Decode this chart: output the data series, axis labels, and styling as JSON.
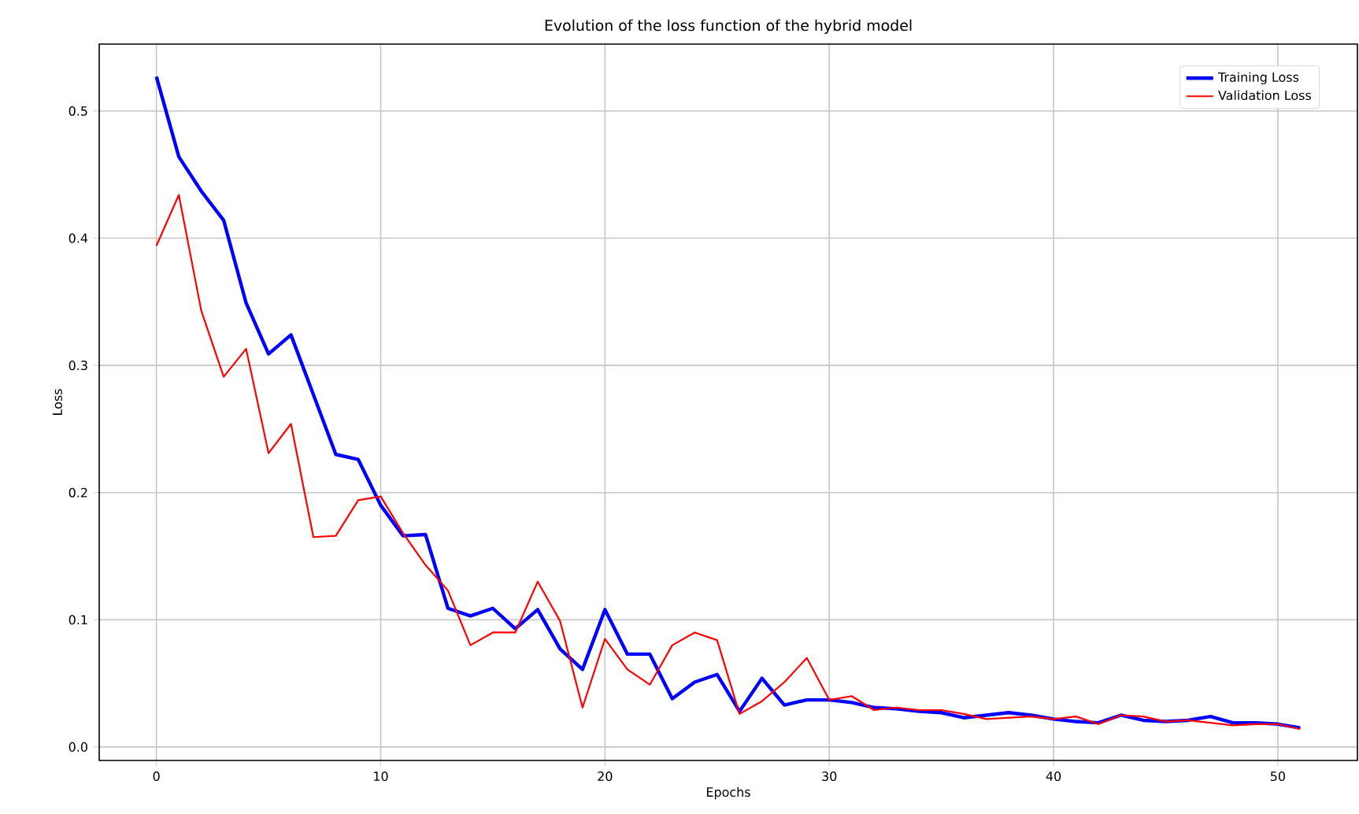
{
  "chart_data": {
    "type": "line",
    "title": "Evolution of the loss function of the hybrid model",
    "xlabel": "Epochs",
    "ylabel": "Loss",
    "x": [
      0,
      1,
      2,
      3,
      4,
      5,
      6,
      7,
      8,
      9,
      10,
      11,
      12,
      13,
      14,
      15,
      16,
      17,
      18,
      19,
      20,
      21,
      22,
      23,
      24,
      25,
      26,
      27,
      28,
      29,
      30,
      31,
      32,
      33,
      34,
      35,
      36,
      37,
      38,
      39,
      40,
      41,
      42,
      43,
      44,
      45,
      46,
      47,
      48,
      49,
      50,
      51
    ],
    "series": [
      {
        "name": "Training Loss",
        "color": "#0000ff",
        "values": [
          0.527,
          0.464,
          0.437,
          0.414,
          0.349,
          0.309,
          0.324,
          0.277,
          0.23,
          0.226,
          0.19,
          0.166,
          0.167,
          0.109,
          0.103,
          0.109,
          0.093,
          0.108,
          0.077,
          0.061,
          0.108,
          0.073,
          0.073,
          0.038,
          0.051,
          0.057,
          0.028,
          0.054,
          0.033,
          0.037,
          0.037,
          0.035,
          0.031,
          0.03,
          0.028,
          0.027,
          0.023,
          0.025,
          0.027,
          0.025,
          0.022,
          0.02,
          0.019,
          0.025,
          0.021,
          0.02,
          0.021,
          0.024,
          0.019,
          0.019,
          0.018,
          0.015
        ]
      },
      {
        "name": "Validation Loss",
        "color": "#ff0000",
        "values": [
          0.394,
          0.434,
          0.343,
          0.291,
          0.313,
          0.231,
          0.254,
          0.165,
          0.166,
          0.194,
          0.197,
          0.168,
          0.143,
          0.123,
          0.08,
          0.09,
          0.09,
          0.13,
          0.099,
          0.031,
          0.085,
          0.061,
          0.049,
          0.08,
          0.09,
          0.084,
          0.026,
          0.036,
          0.051,
          0.07,
          0.037,
          0.04,
          0.029,
          0.031,
          0.029,
          0.029,
          0.026,
          0.022,
          0.023,
          0.024,
          0.022,
          0.024,
          0.018,
          0.025,
          0.024,
          0.02,
          0.021,
          0.019,
          0.017,
          0.018,
          0.018,
          0.014
        ]
      }
    ],
    "xlim": [
      -2.55,
      53.55
    ],
    "ylim": [
      -0.0106,
      0.5526
    ],
    "xticks": [
      0,
      10,
      20,
      30,
      40,
      50
    ],
    "yticks": [
      {
        "value": 0,
        "label": "0.0"
      },
      {
        "value": 0.1,
        "label": "0.1"
      },
      {
        "value": 0.2,
        "label": "0.2"
      },
      {
        "value": 0.3,
        "label": "0.3"
      },
      {
        "value": 0.4,
        "label": "0.4"
      },
      {
        "value": 0.5,
        "label": "0.5"
      }
    ],
    "grid": true,
    "legend": "top right",
    "line_style": "solid",
    "marker": "none"
  }
}
